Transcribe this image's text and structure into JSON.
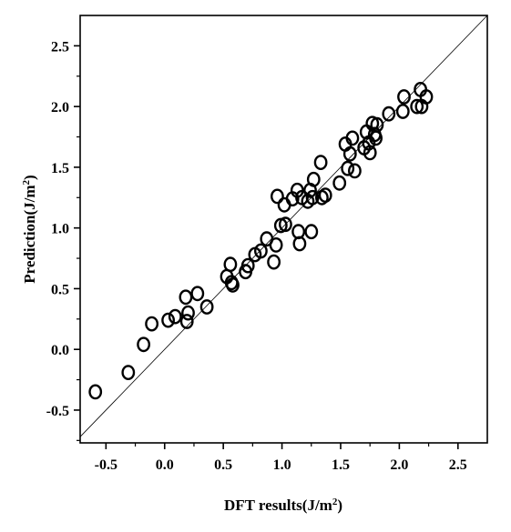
{
  "chart_data": {
    "type": "scatter",
    "title": "",
    "xlabel": "DFT results(J/m",
    "xlabel_sup": "2",
    "xlabel_end": ")",
    "ylabel": "Prediction(J/m",
    "ylabel_sup": "2",
    "ylabel_end": ")",
    "xlim": [
      -0.72,
      2.75
    ],
    "ylim": [
      -0.77,
      2.75
    ],
    "xticks": [
      "-0.5",
      "0.0",
      "0.5",
      "1.0",
      "1.5",
      "2.0",
      "2.5"
    ],
    "yticks": [
      "-0.5",
      "0.0",
      "0.5",
      "1.0",
      "1.5",
      "2.0",
      "2.5"
    ],
    "grid": false,
    "legend": "none",
    "reference_line": "y = x",
    "marker": "open-circle",
    "points": [
      [
        -0.59,
        -0.35
      ],
      [
        -0.31,
        -0.19
      ],
      [
        -0.18,
        0.04
      ],
      [
        -0.11,
        0.21
      ],
      [
        0.03,
        0.24
      ],
      [
        0.09,
        0.27
      ],
      [
        0.18,
        0.43
      ],
      [
        0.19,
        0.23
      ],
      [
        0.2,
        0.3
      ],
      [
        0.28,
        0.46
      ],
      [
        0.36,
        0.35
      ],
      [
        0.53,
        0.6
      ],
      [
        0.56,
        0.7
      ],
      [
        0.57,
        0.55
      ],
      [
        0.58,
        0.53
      ],
      [
        0.69,
        0.64
      ],
      [
        0.71,
        0.69
      ],
      [
        0.77,
        0.78
      ],
      [
        0.82,
        0.81
      ],
      [
        0.87,
        0.91
      ],
      [
        0.93,
        0.72
      ],
      [
        0.95,
        0.86
      ],
      [
        0.96,
        1.26
      ],
      [
        0.99,
        1.02
      ],
      [
        1.02,
        1.19
      ],
      [
        1.03,
        1.03
      ],
      [
        1.09,
        1.24
      ],
      [
        1.13,
        1.31
      ],
      [
        1.14,
        0.97
      ],
      [
        1.15,
        0.87
      ],
      [
        1.17,
        1.25
      ],
      [
        1.22,
        1.22
      ],
      [
        1.24,
        1.31
      ],
      [
        1.25,
        0.97
      ],
      [
        1.26,
        1.25
      ],
      [
        1.27,
        1.4
      ],
      [
        1.33,
        1.54
      ],
      [
        1.34,
        1.25
      ],
      [
        1.37,
        1.27
      ],
      [
        1.49,
        1.37
      ],
      [
        1.54,
        1.69
      ],
      [
        1.56,
        1.49
      ],
      [
        1.58,
        1.61
      ],
      [
        1.6,
        1.74
      ],
      [
        1.62,
        1.47
      ],
      [
        1.7,
        1.66
      ],
      [
        1.72,
        1.79
      ],
      [
        1.74,
        1.7
      ],
      [
        1.75,
        1.62
      ],
      [
        1.77,
        1.86
      ],
      [
        1.79,
        1.77
      ],
      [
        1.8,
        1.74
      ],
      [
        1.81,
        1.85
      ],
      [
        1.91,
        1.94
      ],
      [
        2.03,
        1.96
      ],
      [
        2.04,
        2.08
      ],
      [
        2.15,
        2.0
      ],
      [
        2.18,
        2.14
      ],
      [
        2.19,
        2.0
      ],
      [
        2.23,
        2.08
      ]
    ]
  }
}
